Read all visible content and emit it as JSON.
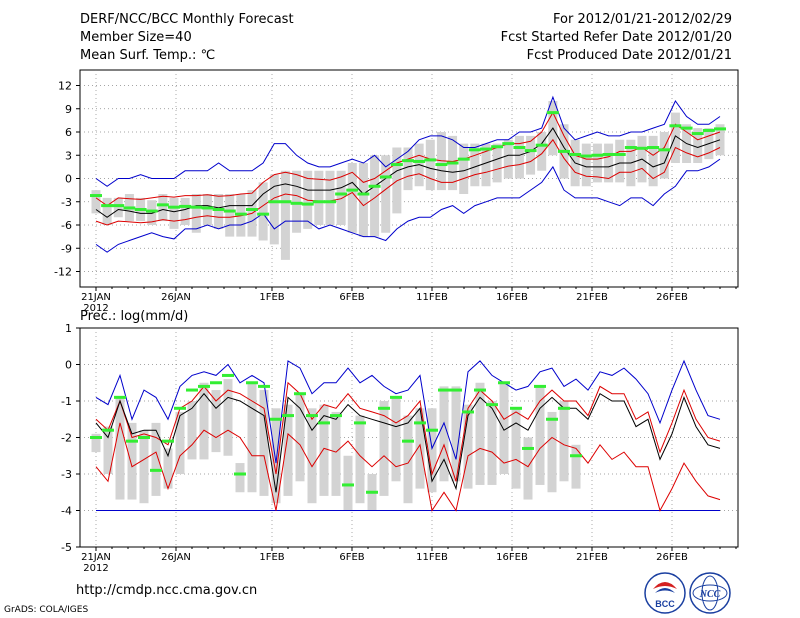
{
  "header": {
    "title": "DERF/NCC/BCC Monthly Forecast",
    "member_size": "Member Size=40",
    "variable1": "Mean Surf. Temp.: ℃",
    "for_period": "For 2012/01/21-2012/02/29",
    "fcst_started": "Fcst Started Refer Date 2012/01/20",
    "fcst_produced": "Fcst Produced Date 2012/01/21"
  },
  "panel2_label": "Prec.: log(mm/d)",
  "footer": {
    "url": "http://cmdp.ncc.cma.gov.cn",
    "grads": "GrADS: COLA/IGES",
    "logo1_text": "BCC",
    "logo2_text": "NCC"
  },
  "colors": {
    "envelope": "#0000cc",
    "spread": "#dd0000",
    "mean": "#000000",
    "observed": "#33ee33",
    "box": "#d3d3d3",
    "grid": "#888888"
  },
  "chart_data": [
    {
      "type": "line",
      "title": "Mean Surf. Temp.: ℃",
      "x_tick_labels": [
        "21JAN\n2012",
        "26JAN",
        "1FEB",
        "6FEB",
        "11FEB",
        "16FEB",
        "21FEB",
        "26FEB"
      ],
      "ylim": [
        -14,
        14
      ],
      "y_ticks": [
        -12,
        -9,
        -6,
        -3,
        0,
        3,
        6,
        9,
        12
      ],
      "series": [
        {
          "name": "max",
          "values": [
            -8.5,
            -9.5,
            -8.5,
            -8,
            -7.5,
            -7,
            -7.5,
            -7.8,
            -6.5,
            -6.5,
            -6,
            -6.5,
            -6,
            -6,
            -5.5,
            -4.5,
            -6.5,
            -5.5,
            -5.5,
            -5.5,
            -6.5,
            -6,
            -6.5,
            -7,
            -7.5,
            -7.5,
            -8,
            -6.5,
            -5.5,
            -5,
            -5,
            -4,
            -3.5,
            -4.5,
            -3.5,
            -3,
            -2.5,
            -2.5,
            -2.5,
            -1.5,
            -0.5,
            1.5,
            -1.5,
            -2.5,
            -2.5,
            -2.5,
            -3,
            -3.5,
            -2.5,
            -2.5,
            -3.5,
            -2,
            -1,
            1,
            1,
            1.5,
            2.5
          ]
        },
        {
          "name": "upper",
          "values": [
            0,
            -1,
            0,
            0,
            0.5,
            0,
            0,
            0,
            1,
            1,
            1,
            2,
            1,
            1,
            1,
            2,
            4.5,
            4.5,
            3,
            2,
            1.5,
            1.5,
            2,
            2.5,
            2,
            3,
            1.5,
            2.5,
            3.5,
            5,
            5.5,
            5.5,
            5,
            4,
            4,
            4.5,
            5,
            5,
            6,
            6,
            6.5,
            10.5,
            6.5,
            5,
            5.5,
            6,
            5.5,
            5.5,
            6,
            6,
            6.5,
            7,
            10,
            8,
            7,
            7,
            8
          ]
        },
        {
          "name": "mean_hi",
          "values": [
            -2.5,
            -3.5,
            -2.5,
            -2.6,
            -2.7,
            -2.5,
            -2.3,
            -2.4,
            -2.2,
            -2.2,
            -2.1,
            -2.3,
            -2.2,
            -2,
            -1.9,
            -0.5,
            0.5,
            0.8,
            0.5,
            0,
            -0.1,
            -0.2,
            0.2,
            0.8,
            -0.5,
            0,
            1,
            2,
            2.5,
            3,
            2.5,
            2.3,
            2.2,
            2.5,
            3,
            3.5,
            4,
            4.5,
            4.5,
            4.8,
            6,
            8.5,
            5.5,
            3,
            2.5,
            2.5,
            2.8,
            3.5,
            3.5,
            4,
            3,
            4,
            7,
            6,
            5,
            5.5,
            6
          ]
        },
        {
          "name": "mean",
          "values": [
            -4,
            -5,
            -4,
            -4.2,
            -4.5,
            -4.5,
            -4,
            -4.3,
            -4,
            -3.5,
            -3.5,
            -3.8,
            -3.5,
            -3.5,
            -3.5,
            -2,
            -1,
            -0.7,
            -1,
            -1.5,
            -1.5,
            -1.5,
            -1.2,
            -0.5,
            -2,
            -1,
            0,
            1,
            1.5,
            1.8,
            1.3,
            1,
            0.8,
            1,
            1.5,
            2,
            2.5,
            3,
            3,
            3.5,
            4.5,
            6.5,
            4,
            2,
            1.5,
            1.5,
            1.5,
            2,
            2,
            2.5,
            1.5,
            2,
            5.5,
            4.5,
            4,
            4.5,
            5
          ]
        },
        {
          "name": "mean_lo",
          "values": [
            -5.5,
            -6,
            -5.5,
            -5.6,
            -5.7,
            -5.6,
            -5.3,
            -5.5,
            -5.3,
            -5,
            -4.8,
            -5,
            -5,
            -4.8,
            -4.5,
            -3.5,
            -2.5,
            -2,
            -2.2,
            -2.8,
            -2.9,
            -2.9,
            -2.6,
            -1.8,
            -3.5,
            -2.5,
            -1.4,
            -0.3,
            0.3,
            0.6,
            0,
            -0.5,
            -0.5,
            0,
            0.5,
            0.8,
            1.2,
            1.6,
            1.8,
            2.2,
            3.2,
            5,
            2.6,
            0.8,
            0.3,
            0.2,
            0,
            0.8,
            0.8,
            1.3,
            0,
            0.8,
            4,
            3.3,
            2.8,
            3.3,
            4
          ]
        },
        {
          "name": "obs",
          "values": [
            -2.2,
            -3.5,
            -3.5,
            -3.8,
            -4,
            -4.2,
            -3.4,
            -3.7,
            -3.6,
            -3.7,
            -3.8,
            -4,
            -4.2,
            -4.6,
            -4,
            -4.6,
            -3,
            -3,
            -3.2,
            -3.3,
            -3,
            -3,
            -2,
            -1.5,
            -2,
            -1,
            0.2,
            1.8,
            2.3,
            2.2,
            2.4,
            1.8,
            2,
            2.5,
            3.7,
            3.8,
            4.1,
            4.5,
            4,
            3.6,
            4.3,
            8.5,
            3.5,
            3.1,
            2.9,
            3,
            3.1,
            3.1,
            4,
            3.9,
            4,
            3.7,
            6.8,
            6.5,
            5.8,
            6.2,
            6.4
          ]
        },
        {
          "name": "box_top",
          "values": [
            -1.5,
            -2.5,
            -2.5,
            -2,
            -2.5,
            -2.8,
            -2,
            -2.5,
            -2.5,
            -2,
            -2,
            -2,
            -2,
            -2,
            -1.5,
            -0.5,
            0.5,
            1,
            1,
            1,
            1,
            1,
            1,
            2,
            2,
            3,
            3,
            4,
            4,
            4.5,
            5,
            6,
            5.5,
            4.5,
            4.5,
            4.5,
            4.5,
            5,
            5.5,
            5.5,
            6,
            10,
            7,
            5,
            4.5,
            4.5,
            4.5,
            5,
            5,
            5.5,
            5.5,
            6,
            8.5,
            7,
            6.5,
            6.5,
            7
          ]
        },
        {
          "name": "box_bottom",
          "values": [
            -4.5,
            -6,
            -5,
            -5.5,
            -5.5,
            -6,
            -5.5,
            -6.5,
            -6,
            -7,
            -6,
            -6.5,
            -7.5,
            -7.5,
            -7.5,
            -8,
            -8.5,
            -10.5,
            -7,
            -6.5,
            -6,
            -6,
            -6,
            -7,
            -7.5,
            -7.5,
            -7,
            -4.5,
            -1.5,
            -1,
            -1.5,
            -1.5,
            -1.5,
            -2,
            -1,
            -1,
            -0.5,
            0,
            0,
            0.5,
            1,
            3,
            0,
            -1,
            -1,
            -0.5,
            -0.5,
            -0.5,
            -1,
            -0.5,
            -1,
            0,
            2,
            2,
            2,
            2.5,
            3
          ]
        }
      ]
    },
    {
      "type": "line",
      "title": "Prec.: log(mm/d)",
      "x_tick_labels": [
        "21JAN\n2012",
        "26JAN",
        "1FEB",
        "6FEB",
        "11FEB",
        "16FEB",
        "21FEB",
        "26FEB"
      ],
      "ylim": [
        -5,
        1
      ],
      "y_ticks": [
        1,
        0,
        -1,
        -2,
        -3,
        -4,
        -5
      ],
      "series": [
        {
          "name": "floor",
          "values": [
            -4,
            -4,
            -4,
            -4,
            -4,
            -4,
            -4,
            -4,
            -4,
            -4,
            -4,
            -4,
            -4,
            -4,
            -4,
            -4,
            -4,
            -4,
            -4,
            -4,
            -4,
            -4,
            -4,
            -4,
            -4,
            -4,
            -4,
            -4,
            -4,
            -4,
            -4,
            -4,
            -4,
            -4,
            -4,
            -4,
            -4,
            -4,
            -4,
            -4,
            -4,
            -4,
            -4,
            -4,
            -4,
            -4,
            -4,
            -4,
            -4,
            -4,
            -4,
            -4,
            -4,
            -4,
            -4,
            -4,
            -4
          ]
        },
        {
          "name": "max",
          "values": [
            -0.9,
            -1.1,
            -0.3,
            -1.5,
            -0.7,
            -0.9,
            -1.5,
            -0.6,
            -0.3,
            -0.2,
            -0.3,
            0,
            -0.5,
            -0.3,
            -0.5,
            -2.7,
            0.1,
            -0.1,
            -0.8,
            -0.5,
            -0.5,
            -0.1,
            -0.5,
            -0.3,
            -0.6,
            -0.8,
            -0.7,
            -0.3,
            -2.3,
            -1.6,
            -2.6,
            -0.2,
            0.1,
            -0.3,
            -0.5,
            -0.7,
            -0.6,
            -0.2,
            -0.1,
            -0.6,
            -0.4,
            -0.7,
            -0.2,
            -0.3,
            -0.1,
            -0.4,
            -0.8,
            -1.6,
            -0.7,
            0.1,
            -0.7,
            -1.4,
            -1.5
          ]
        },
        {
          "name": "upper_red",
          "values": [
            -1.5,
            -1.8,
            -1,
            -2,
            -1.9,
            -2,
            -2.2,
            -1.2,
            -1,
            -0.6,
            -1,
            -0.7,
            -0.8,
            -1,
            -1.2,
            -3,
            -0.5,
            -0.8,
            -1.5,
            -1.1,
            -1.2,
            -0.8,
            -1.2,
            -1.3,
            -1.4,
            -1.6,
            -1.4,
            -1,
            -3,
            -2.2,
            -3.2,
            -1.2,
            -0.7,
            -1,
            -1.5,
            -1.3,
            -1.5,
            -1,
            -0.7,
            -1,
            -1,
            -1.4,
            -0.6,
            -0.8,
            -0.8,
            -1.5,
            -1.3,
            -2.4,
            -1.6,
            -0.7,
            -1.5,
            -2,
            -2.1
          ]
        },
        {
          "name": "mean",
          "values": [
            -1.6,
            -2,
            -1,
            -1.9,
            -1.8,
            -1.8,
            -2.5,
            -1.4,
            -1.2,
            -0.8,
            -1.2,
            -0.9,
            -1,
            -1.2,
            -1.4,
            -3.5,
            -0.9,
            -1.2,
            -1.8,
            -1.4,
            -1.5,
            -1.1,
            -1.4,
            -1.5,
            -1.6,
            -1.7,
            -1.6,
            -1.2,
            -3.2,
            -2.6,
            -3.4,
            -1.4,
            -0.9,
            -1.2,
            -1.8,
            -1.6,
            -1.8,
            -1.2,
            -0.9,
            -1.2,
            -1.2,
            -1.5,
            -0.8,
            -1,
            -1,
            -1.7,
            -1.5,
            -2.6,
            -1.9,
            -0.9,
            -1.7,
            -2.2,
            -2.3
          ]
        },
        {
          "name": "lower_red",
          "values": [
            -2.8,
            -3.2,
            -1.6,
            -2.8,
            -2.6,
            -2.4,
            -3.4,
            -2.5,
            -2.2,
            -1.8,
            -2,
            -1.8,
            -2,
            -2.5,
            -2.5,
            -4,
            -1.9,
            -2.2,
            -2.8,
            -2.3,
            -2.4,
            -2.1,
            -2.5,
            -2.8,
            -2.5,
            -2.8,
            -2.7,
            -2.2,
            -4,
            -3.5,
            -4,
            -2.5,
            -2.3,
            -2.4,
            -2.7,
            -2.6,
            -2.8,
            -2.3,
            -2,
            -2.2,
            -2.3,
            -2.7,
            -2.2,
            -2.6,
            -2.4,
            -2.8,
            -2.8,
            -4,
            -3.4,
            -2.7,
            -3.2,
            -3.6,
            -3.7
          ]
        },
        {
          "name": "obs",
          "values": [
            -2,
            -1.8,
            -0.9,
            -2.1,
            -2,
            -2.9,
            -2.1,
            -1.2,
            -0.7,
            -0.6,
            -0.5,
            -0.3,
            -3,
            -0.5,
            -0.6,
            -1.5,
            -1.4,
            -0.8,
            -1.4,
            -1.6,
            -1.4,
            -3.3,
            -1.6,
            -3.5,
            -1.2,
            -0.9,
            -2.1,
            -1.6,
            -1.8,
            -0.7,
            -0.7,
            -1.3,
            -0.7,
            -1.1,
            -0.5,
            -1.2,
            -2.3,
            -0.6,
            -1.5,
            -1.2,
            -2.5,
            null,
            null,
            null,
            null,
            null,
            null,
            null,
            null,
            null,
            null,
            null,
            null
          ]
        },
        {
          "name": "box_top",
          "values": [
            -1.9,
            -1.7,
            -0.9,
            -1.6,
            -1.8,
            -1.6,
            -2.3,
            -1.3,
            -1,
            -0.5,
            -0.7,
            -0.4,
            -2.7,
            -0.5,
            -0.7,
            -1.2,
            -1.1,
            -0.8,
            -1.2,
            -1.1,
            -1.3,
            -2.5,
            -1.4,
            -3,
            -1,
            -0.9,
            -1.4,
            -1.2,
            -1.2,
            -0.6,
            -0.6,
            -1.1,
            -0.5,
            -1,
            -0.5,
            -1.2,
            -2,
            -0.6,
            -1.3,
            -1,
            -2.2,
            null,
            null,
            null,
            null,
            null,
            null,
            null,
            null,
            null,
            null,
            null,
            null
          ]
        },
        {
          "name": "box_bottom",
          "values": [
            -2.4,
            -3,
            -3.7,
            -3.7,
            -3.8,
            -3.6,
            -3.4,
            -3,
            -2.6,
            -2.6,
            -2.4,
            -2.5,
            -3.5,
            -3.5,
            -3.6,
            -3.8,
            -3.6,
            -3.2,
            -3.8,
            -3.6,
            -3.6,
            -4,
            -3.8,
            -4,
            -3.6,
            -3.2,
            -3.8,
            -3.4,
            -3.5,
            -3.2,
            -3.2,
            -3.4,
            -3.3,
            -3.3,
            -3,
            -3.4,
            -3.7,
            -3.3,
            -3.5,
            -3.2,
            -3.4,
            null,
            null,
            null,
            null,
            null,
            null,
            null,
            null,
            null,
            null,
            null,
            null
          ]
        }
      ]
    }
  ]
}
